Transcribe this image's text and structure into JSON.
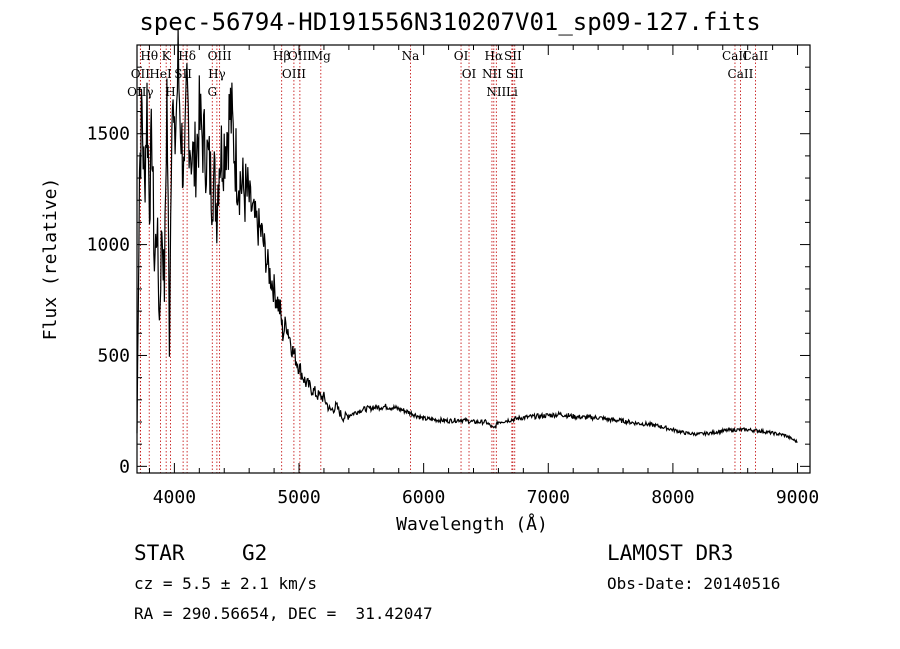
{
  "chart_data": {
    "type": "line",
    "title": "spec-56794-HD191556N310207V01_sp09-127.fits",
    "xlabel": "Wavelength (Å)",
    "ylabel": "Flux (relative)",
    "xlim": [
      3700,
      9100
    ],
    "ylim": [
      -30,
      1900
    ],
    "xticks": [
      4000,
      5000,
      6000,
      7000,
      8000,
      9000
    ],
    "yticks": [
      0,
      500,
      1000,
      1500
    ],
    "grid": false,
    "series": [
      {
        "name": "spectrum",
        "x": [
          3700,
          3720,
          3740,
          3760,
          3780,
          3800,
          3820,
          3840,
          3860,
          3880,
          3900,
          3920,
          3940,
          3960,
          3980,
          4000,
          4030,
          4060,
          4080,
          4100,
          4130,
          4160,
          4200,
          4240,
          4280,
          4300,
          4320,
          4340,
          4360,
          4400,
          4450,
          4500,
          4550,
          4600,
          4650,
          4700,
          4750,
          4800,
          4850,
          4870,
          4900,
          4950,
          5000,
          5050,
          5100,
          5150,
          5200,
          5250,
          5300,
          5350,
          5400,
          5500,
          5600,
          5700,
          5800,
          5900,
          6000,
          6100,
          6200,
          6300,
          6400,
          6500,
          6563,
          6600,
          6700,
          6800,
          6900,
          7000,
          7100,
          7200,
          7300,
          7400,
          7500,
          7600,
          7700,
          7800,
          7900,
          8000,
          8100,
          8200,
          8300,
          8400,
          8500,
          8600,
          8700,
          8800,
          8900,
          9000
        ],
        "y": [
          150,
          1350,
          1600,
          1250,
          1650,
          1200,
          1500,
          900,
          1100,
          650,
          1100,
          800,
          1700,
          550,
          1750,
          1400,
          1800,
          1450,
          1250,
          1700,
          1450,
          1350,
          1550,
          1450,
          1350,
          1250,
          1300,
          1150,
          1400,
          1450,
          1600,
          1350,
          1250,
          1200,
          1100,
          1050,
          900,
          800,
          700,
          600,
          650,
          520,
          450,
          380,
          350,
          320,
          310,
          250,
          270,
          220,
          230,
          255,
          265,
          270,
          260,
          240,
          215,
          210,
          205,
          210,
          200,
          200,
          170,
          200,
          210,
          220,
          225,
          230,
          235,
          225,
          220,
          220,
          210,
          205,
          195,
          190,
          180,
          165,
          150,
          145,
          150,
          160,
          165,
          165,
          160,
          150,
          140,
          110
        ]
      }
    ],
    "lines": [
      {
        "name": "Hθ",
        "x": 3798
      },
      {
        "name": "OII",
        "x": 3727
      },
      {
        "name": "OIIγ",
        "x": 3727
      },
      {
        "name": "HeI",
        "x": 3889
      },
      {
        "name": "K",
        "x": 3934
      },
      {
        "name": "H",
        "x": 3969
      },
      {
        "name": "Hδ",
        "x": 4102
      },
      {
        "name": "SII",
        "x": 4070
      },
      {
        "name": "OIII",
        "x": 4363
      },
      {
        "name": "Hγ",
        "x": 4341
      },
      {
        "name": "G",
        "x": 4304
      },
      {
        "name": "Hβ",
        "x": 4861
      },
      {
        "name": "OIII",
        "x": 4959
      },
      {
        "name": "OIII",
        "x": 5007
      },
      {
        "name": "Mg",
        "x": 5175
      },
      {
        "name": "Na",
        "x": 5894
      },
      {
        "name": "OI",
        "x": 6300
      },
      {
        "name": "OI",
        "x": 6364
      },
      {
        "name": "Hα",
        "x": 6563
      },
      {
        "name": "NII",
        "x": 6548
      },
      {
        "name": "NII",
        "x": 6583
      },
      {
        "name": "SII",
        "x": 6716
      },
      {
        "name": "SII",
        "x": 6731
      },
      {
        "name": "Li",
        "x": 6708
      },
      {
        "name": "CaII",
        "x": 8498
      },
      {
        "name": "CaII",
        "x": 8542
      },
      {
        "name": "CaII",
        "x": 8662
      }
    ]
  },
  "info": {
    "object_class": "STAR",
    "subclass": "G2",
    "survey": "LAMOST DR3",
    "cz": "cz = 5.5 ± 2.1 km/s",
    "obs_date": "Obs-Date: 20140516",
    "coords": "RA = 290.56654, DEC =  31.42047"
  },
  "colors": {
    "line_marker": "#c00000",
    "spectrum": "#000000"
  }
}
